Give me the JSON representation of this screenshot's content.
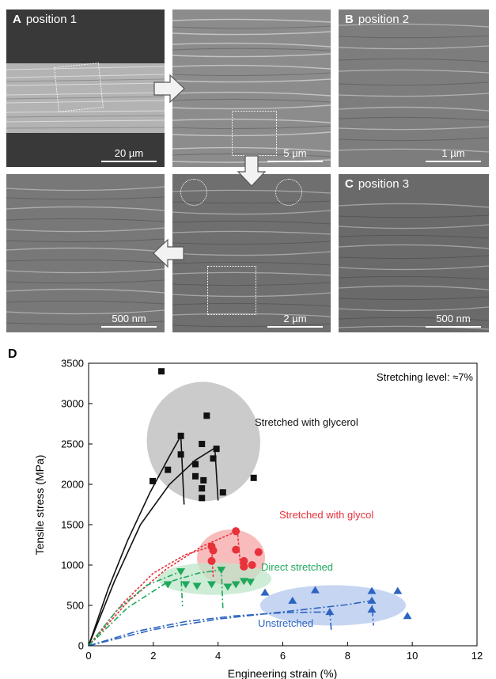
{
  "panels": {
    "a1": {
      "letter": "A",
      "label": "position 1",
      "scale": "20 µm"
    },
    "a2": {
      "scale": "5 µm"
    },
    "b": {
      "letter": "B",
      "label": "position 2",
      "scale": "1 µm"
    },
    "a4": {
      "scale": "500 nm"
    },
    "a3": {
      "scale": "2 µm"
    },
    "c": {
      "letter": "C",
      "label": "position 3",
      "scale": "500 nm"
    }
  },
  "chart_panel_letter": "D",
  "colors": {
    "glycerol": "#111111",
    "glycol": "#e8313a",
    "direct": "#1fa85b",
    "unstretched": "#2c64c0"
  },
  "chart_data": {
    "type": "scatter",
    "annotation": "Stretching level: ≈7%",
    "xlabel": "Engineering strain (%)",
    "ylabel": "Tensile stress (MPa)",
    "xlim": [
      0,
      12
    ],
    "ylim": [
      0,
      3500
    ],
    "xticks": [
      0,
      2,
      4,
      6,
      8,
      10,
      12
    ],
    "yticks": [
      0,
      500,
      1000,
      1500,
      2000,
      2500,
      3000,
      3500
    ],
    "series": [
      {
        "name": "Stretched with glycerol",
        "marker": "square",
        "color": "#111111",
        "points": [
          [
            2.25,
            3400
          ],
          [
            3.65,
            2850
          ],
          [
            2.85,
            2600
          ],
          [
            3.95,
            2440
          ],
          [
            3.85,
            2320
          ],
          [
            3.5,
            2500
          ],
          [
            2.85,
            2370
          ],
          [
            3.3,
            2250
          ],
          [
            2.45,
            2180
          ],
          [
            1.98,
            2040
          ],
          [
            3.3,
            2100
          ],
          [
            3.55,
            2050
          ],
          [
            3.5,
            1950
          ],
          [
            5.1,
            2080
          ],
          [
            4.15,
            1900
          ],
          [
            3.5,
            1830
          ]
        ],
        "curves": [
          [
            [
              0,
              0
            ],
            [
              0.6,
              700
            ],
            [
              1.2,
              1300
            ],
            [
              1.9,
              1900
            ],
            [
              2.5,
              2350
            ],
            [
              2.85,
              2600
            ],
            [
              2.95,
              1750
            ]
          ],
          [
            [
              0,
              0
            ],
            [
              0.8,
              800
            ],
            [
              1.6,
              1500
            ],
            [
              2.5,
              2000
            ],
            [
              3.3,
              2300
            ],
            [
              3.9,
              2450
            ],
            [
              4.0,
              1800
            ]
          ]
        ]
      },
      {
        "name": "Stretched with glycol",
        "marker": "circle",
        "color": "#e8313a",
        "points": [
          [
            3.8,
            1230
          ],
          [
            3.85,
            1180
          ],
          [
            3.8,
            1050
          ],
          [
            4.55,
            1420
          ],
          [
            4.55,
            1190
          ],
          [
            4.8,
            1050
          ],
          [
            5.05,
            1000
          ],
          [
            5.25,
            1160
          ],
          [
            4.8,
            980
          ]
        ],
        "curves": [
          [
            [
              0,
              0
            ],
            [
              1.0,
              500
            ],
            [
              2.0,
              900
            ],
            [
              3.0,
              1130
            ],
            [
              3.8,
              1230
            ],
            [
              3.85,
              850
            ]
          ],
          [
            [
              0,
              0
            ],
            [
              1.2,
              540
            ],
            [
              2.4,
              950
            ],
            [
              3.5,
              1230
            ],
            [
              4.3,
              1370
            ],
            [
              4.6,
              1420
            ],
            [
              4.7,
              950
            ]
          ]
        ]
      },
      {
        "name": "Direct stretched",
        "marker": "triangle-down",
        "color": "#1fa85b",
        "points": [
          [
            2.85,
            920
          ],
          [
            2.45,
            760
          ],
          [
            3.0,
            760
          ],
          [
            3.35,
            740
          ],
          [
            4.1,
            940
          ],
          [
            3.8,
            760
          ],
          [
            4.3,
            730
          ],
          [
            4.55,
            760
          ],
          [
            4.8,
            800
          ],
          [
            5.0,
            790
          ]
        ],
        "curves": [
          [
            [
              0,
              0
            ],
            [
              0.9,
              450
            ],
            [
              1.8,
              750
            ],
            [
              2.6,
              880
            ],
            [
              2.85,
              920
            ],
            [
              2.9,
              490
            ]
          ],
          [
            [
              0,
              0
            ],
            [
              1.2,
              470
            ],
            [
              2.4,
              780
            ],
            [
              3.4,
              900
            ],
            [
              4.1,
              940
            ],
            [
              4.15,
              450
            ]
          ]
        ]
      },
      {
        "name": "Unstretched",
        "marker": "triangle-up",
        "color": "#2c64c0",
        "points": [
          [
            5.45,
            660
          ],
          [
            6.3,
            560
          ],
          [
            7.0,
            690
          ],
          [
            8.75,
            680
          ],
          [
            9.55,
            680
          ],
          [
            9.85,
            370
          ],
          [
            7.45,
            420
          ],
          [
            8.75,
            450
          ],
          [
            8.75,
            560
          ]
        ],
        "curves": [
          [
            [
              0,
              0
            ],
            [
              1.5,
              180
            ],
            [
              3.0,
              300
            ],
            [
              4.5,
              370
            ],
            [
              6.0,
              410
            ],
            [
              7.45,
              420
            ],
            [
              7.5,
              180
            ]
          ],
          [
            [
              0,
              0
            ],
            [
              2.0,
              200
            ],
            [
              4.0,
              330
            ],
            [
              6.0,
              420
            ],
            [
              8.0,
              510
            ],
            [
              8.75,
              560
            ],
            [
              8.8,
              250
            ]
          ]
        ]
      }
    ],
    "ellipses": [
      {
        "series": "Stretched with glycerol",
        "cx": 3.55,
        "cy": 2530,
        "rx": 1.75,
        "ry": 740,
        "rotate": -8,
        "fill": "#b9b9b9"
      },
      {
        "series": "Stretched with glycol",
        "cx": 4.4,
        "cy": 1090,
        "rx": 1.05,
        "ry": 350,
        "rotate": 0,
        "fill": "#f5a6a6"
      },
      {
        "series": "Direct stretched",
        "cx": 3.9,
        "cy": 830,
        "rx": 1.75,
        "ry": 200,
        "rotate": 0,
        "fill": "#bfe6c9"
      },
      {
        "series": "Unstretched",
        "cx": 7.55,
        "cy": 500,
        "rx": 2.25,
        "ry": 250,
        "rotate": 0,
        "fill": "#b3c8ee"
      }
    ]
  }
}
